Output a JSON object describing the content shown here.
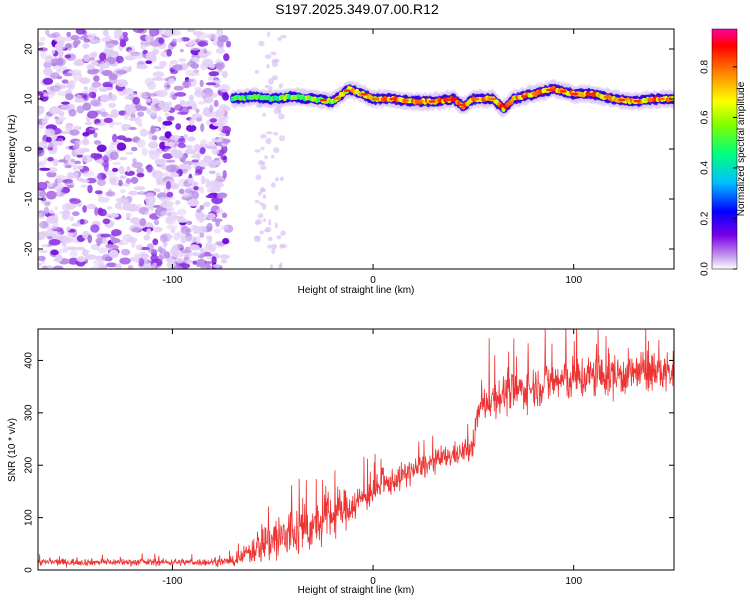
{
  "title": "S197.2025.349.07.00.R12",
  "chart_data": [
    {
      "type": "heatmap",
      "name": "spectrogram",
      "xlabel": "Height of straight line (km)",
      "ylabel": "Frequency (Hz)",
      "xlim": [
        -167,
        150
      ],
      "ylim": [
        -24,
        24
      ],
      "xticks": [
        -100,
        0,
        100
      ],
      "xtick_labels": [
        "-100",
        "0",
        "100"
      ],
      "yticks": [
        -20,
        -10,
        0,
        10,
        20
      ],
      "ytick_labels": [
        "-20",
        "-10",
        "0",
        "10",
        "20"
      ],
      "ridge": {
        "description": "dominant frequency band (Hz) vs height (km)",
        "x": [
          -70,
          -60,
          -50,
          -40,
          -30,
          -20,
          -12,
          -5,
          0,
          10,
          20,
          30,
          40,
          45,
          50,
          60,
          65,
          70,
          80,
          90,
          100,
          110,
          120,
          130,
          140,
          150
        ],
        "freq": [
          10,
          10.5,
          10,
          10.5,
          10,
          9.5,
          12,
          11,
          10,
          10,
          9.5,
          9.5,
          10,
          8.5,
          10,
          10,
          8,
          10,
          11,
          12,
          11,
          11,
          10,
          9.5,
          10,
          10
        ]
      },
      "noise_region_x": [
        -167,
        -72
      ],
      "colorbar": {
        "label": "Normalized spectral amplitude",
        "range": [
          0,
          0.95
        ],
        "ticks": [
          0.0,
          0.2,
          0.4,
          0.6,
          0.8
        ],
        "tick_labels": [
          "0.0",
          "0.2",
          "0.4",
          "0.6",
          "0.8"
        ],
        "colors": [
          "#ffffff",
          "#d2b4f0",
          "#7a00e6",
          "#0000ff",
          "#00bfff",
          "#00ff7f",
          "#7fff00",
          "#ffff00",
          "#ff8000",
          "#ff0000",
          "#ff00a0"
        ]
      }
    },
    {
      "type": "line",
      "name": "snr",
      "xlabel": "Height of straight line (km)",
      "ylabel": "SNR (10 * v/v)",
      "xlim": [
        -167,
        150
      ],
      "ylim": [
        0,
        460
      ],
      "xticks": [
        -100,
        0,
        100
      ],
      "xtick_labels": [
        "-100",
        "0",
        "100"
      ],
      "yticks": [
        0,
        100,
        200,
        300,
        400
      ],
      "ytick_labels": [
        "0",
        "100",
        "200",
        "300",
        "400"
      ],
      "color": "#ee3333",
      "series": [
        {
          "name": "SNR",
          "x": [
            -167,
            -120,
            -80,
            -68,
            -60,
            -52,
            -45,
            -38,
            -30,
            -20,
            -10,
            0,
            10,
            20,
            30,
            40,
            50,
            52,
            55,
            60,
            70,
            80,
            90,
            100,
            110,
            120,
            130,
            140,
            150
          ],
          "mean": [
            15,
            15,
            15,
            17,
            40,
            60,
            60,
            75,
            80,
            105,
            125,
            150,
            170,
            190,
            205,
            220,
            230,
            300,
            315,
            330,
            340,
            350,
            360,
            365,
            370,
            372,
            375,
            378,
            378
          ],
          "spread": [
            6,
            6,
            6,
            8,
            25,
            45,
            55,
            45,
            40,
            40,
            30,
            25,
            22,
            22,
            20,
            20,
            20,
            25,
            30,
            35,
            35,
            35,
            40,
            40,
            40,
            40,
            35,
            35,
            35
          ]
        }
      ]
    }
  ]
}
